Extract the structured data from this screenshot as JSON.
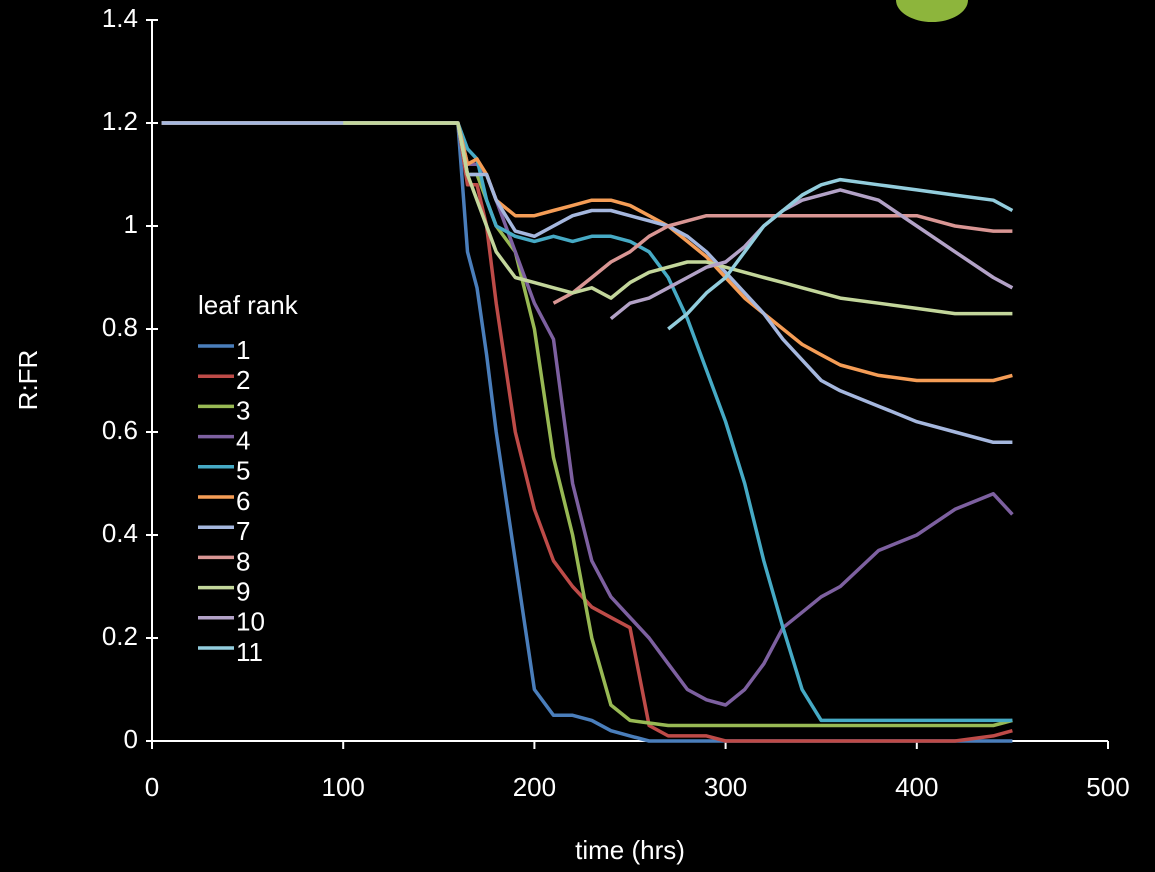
{
  "chart_data": {
    "type": "line",
    "xlabel": "time (hrs)",
    "ylabel": "R:FR",
    "legend_title": "leaf rank",
    "legend": "left",
    "xlim": [
      0,
      500
    ],
    "xticks": [
      0,
      100,
      200,
      300,
      400,
      500
    ],
    "ylim": [
      0,
      1.4
    ],
    "yticks": [
      0,
      0.2,
      0.4,
      0.6,
      0.8,
      1,
      1.2,
      1.4
    ],
    "x": [
      5,
      50,
      100,
      150,
      160,
      165,
      170,
      175,
      180,
      190,
      200,
      210,
      220,
      230,
      240,
      250,
      260,
      270,
      280,
      290,
      300,
      310,
      320,
      330,
      340,
      350,
      360,
      380,
      400,
      420,
      440,
      450
    ],
    "series": [
      {
        "name": "1",
        "color": "#4a7ebb",
        "values": [
          1.2,
          1.2,
          1.2,
          1.2,
          1.2,
          0.95,
          0.88,
          0.75,
          0.6,
          0.35,
          0.1,
          0.05,
          0.05,
          0.04,
          0.02,
          0.01,
          0,
          0,
          0,
          0,
          0,
          0,
          0,
          0,
          0,
          0,
          0,
          0,
          0,
          0,
          0,
          0
        ]
      },
      {
        "name": "2",
        "color": "#be4b48",
        "values": [
          1.2,
          1.2,
          1.2,
          1.2,
          1.2,
          1.08,
          1.08,
          1.0,
          0.85,
          0.6,
          0.45,
          0.35,
          0.3,
          0.26,
          0.24,
          0.22,
          0.03,
          0.01,
          0.01,
          0.01,
          0,
          0,
          0,
          0,
          0,
          0,
          0,
          0,
          0,
          0,
          0.01,
          0.02
        ]
      },
      {
        "name": "3",
        "color": "#98b954",
        "values": [
          1.2,
          1.2,
          1.2,
          1.2,
          1.2,
          1.1,
          1.1,
          1.05,
          1.0,
          0.95,
          0.8,
          0.55,
          0.4,
          0.2,
          0.07,
          0.04,
          0.035,
          0.03,
          0.03,
          0.03,
          0.03,
          0.03,
          0.03,
          0.03,
          0.03,
          0.03,
          0.03,
          0.03,
          0.03,
          0.03,
          0.03,
          0.04
        ]
      },
      {
        "name": "4",
        "color": "#7d60a0",
        "values": [
          1.2,
          1.2,
          1.2,
          1.2,
          1.2,
          1.12,
          1.12,
          1.1,
          1.05,
          0.95,
          0.85,
          0.78,
          0.5,
          0.35,
          0.28,
          0.24,
          0.2,
          0.15,
          0.1,
          0.08,
          0.07,
          0.1,
          0.15,
          0.22,
          0.25,
          0.28,
          0.3,
          0.37,
          0.4,
          0.45,
          0.48,
          0.44
        ]
      },
      {
        "name": "5",
        "color": "#46aac5",
        "values": [
          1.2,
          1.2,
          1.2,
          1.2,
          1.2,
          1.15,
          1.13,
          1.05,
          1.0,
          0.98,
          0.97,
          0.98,
          0.97,
          0.98,
          0.98,
          0.97,
          0.95,
          0.9,
          0.82,
          0.72,
          0.62,
          0.5,
          0.35,
          0.22,
          0.1,
          0.04,
          0.04,
          0.04,
          0.04,
          0.04,
          0.04,
          0.04
        ]
      },
      {
        "name": "6",
        "color": "#f59d56",
        "values": [
          1.2,
          1.2,
          1.2,
          1.2,
          1.2,
          1.12,
          1.13,
          1.1,
          1.05,
          1.02,
          1.02,
          1.03,
          1.04,
          1.05,
          1.05,
          1.04,
          1.02,
          1.0,
          0.97,
          0.94,
          0.9,
          0.86,
          0.83,
          0.8,
          0.77,
          0.75,
          0.73,
          0.71,
          0.7,
          0.7,
          0.7,
          0.71
        ]
      },
      {
        "name": "7",
        "color": "#a5b7de",
        "values": [
          1.2,
          1.2,
          1.2,
          1.2,
          1.2,
          1.1,
          1.1,
          1.1,
          1.05,
          0.99,
          0.98,
          1.0,
          1.02,
          1.03,
          1.03,
          1.02,
          1.01,
          1.0,
          0.98,
          0.95,
          0.91,
          0.87,
          0.83,
          0.78,
          0.74,
          0.7,
          0.68,
          0.65,
          0.62,
          0.6,
          0.58,
          0.58
        ]
      },
      {
        "name": "8",
        "color": "#d99694",
        "values": [
          null,
          null,
          null,
          null,
          null,
          null,
          null,
          null,
          null,
          null,
          null,
          0.85,
          0.87,
          0.9,
          0.93,
          0.95,
          0.98,
          1.0,
          1.01,
          1.02,
          1.02,
          1.02,
          1.02,
          1.02,
          1.02,
          1.02,
          1.02,
          1.02,
          1.02,
          1.0,
          0.99,
          0.99
        ]
      },
      {
        "name": "9",
        "color": "#c3d69b",
        "values": [
          null,
          null,
          1.2,
          1.2,
          1.2,
          1.1,
          1.05,
          1.0,
          0.95,
          0.9,
          0.89,
          0.88,
          0.87,
          0.88,
          0.86,
          0.89,
          0.91,
          0.92,
          0.93,
          0.93,
          0.92,
          0.91,
          0.9,
          0.89,
          0.88,
          0.87,
          0.86,
          0.85,
          0.84,
          0.83,
          0.83,
          0.83
        ]
      },
      {
        "name": "10",
        "color": "#b3a2c7",
        "values": [
          null,
          null,
          null,
          null,
          null,
          null,
          null,
          null,
          null,
          null,
          null,
          null,
          null,
          null,
          0.82,
          0.85,
          0.86,
          0.88,
          0.9,
          0.92,
          0.93,
          0.96,
          1.0,
          1.03,
          1.05,
          1.06,
          1.07,
          1.05,
          1.0,
          0.95,
          0.9,
          0.88
        ]
      },
      {
        "name": "11",
        "color": "#93cddd",
        "values": [
          null,
          null,
          null,
          null,
          null,
          null,
          null,
          null,
          null,
          null,
          null,
          null,
          null,
          null,
          null,
          null,
          null,
          0.8,
          0.83,
          0.87,
          0.9,
          0.95,
          1.0,
          1.03,
          1.06,
          1.08,
          1.09,
          1.08,
          1.07,
          1.06,
          1.05,
          1.03
        ]
      }
    ]
  }
}
